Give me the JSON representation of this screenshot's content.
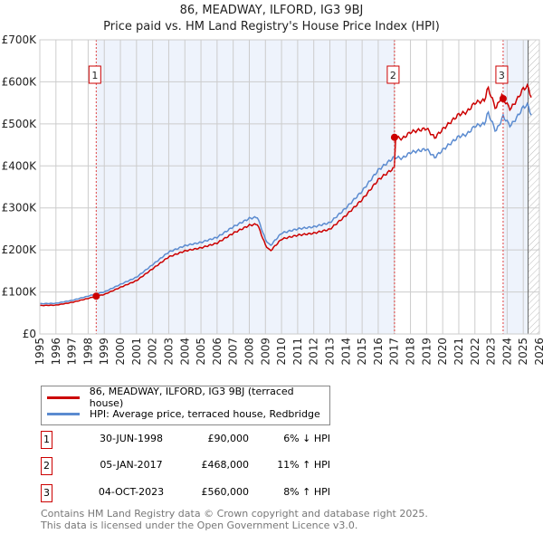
{
  "chart_data": {
    "type": "line",
    "title": "86, MEADWAY, ILFORD, IG3 9BJ",
    "subtitle": "Price paid vs. HM Land Registry's House Price Index (HPI)",
    "xlim": [
      1995,
      2026
    ],
    "ylim": [
      0,
      700000
    ],
    "x_ticks": [
      "1995",
      "1996",
      "1997",
      "1998",
      "1999",
      "2000",
      "2001",
      "2002",
      "2003",
      "2004",
      "2005",
      "2006",
      "2007",
      "2008",
      "2009",
      "2010",
      "2011",
      "2012",
      "2013",
      "2014",
      "2015",
      "2016",
      "2017",
      "2018",
      "2019",
      "2020",
      "2021",
      "2022",
      "2023",
      "2024",
      "2025",
      "2026"
    ],
    "y_ticks": [
      {
        "v": 0,
        "label": "£0"
      },
      {
        "v": 100000,
        "label": "£100K"
      },
      {
        "v": 200000,
        "label": "£200K"
      },
      {
        "v": 300000,
        "label": "£300K"
      },
      {
        "v": 400000,
        "label": "£400K"
      },
      {
        "v": 500000,
        "label": "£500K"
      },
      {
        "v": 600000,
        "label": "£600K"
      },
      {
        "v": 700000,
        "label": "£700K"
      }
    ],
    "grid": true,
    "legend_placement": "below",
    "series": [
      {
        "name": "86, MEADWAY, ILFORD, IG3 9BJ (terraced house)",
        "color": "#cc0000"
      },
      {
        "name": "HPI: Average price, terraced house, Redbridge",
        "color": "#5b8bd0",
        "x": [
          1995,
          1996,
          1997,
          1998,
          1998.5,
          1999,
          2000,
          2001,
          2002,
          2003,
          2004,
          2005,
          2006,
          2007,
          2008,
          2008.5,
          2009,
          2009.3,
          2010,
          2011,
          2012,
          2013,
          2014,
          2015,
          2016,
          2017,
          2017.5,
          2018,
          2019,
          2019.5,
          2020,
          2021,
          2021.5,
          2022,
          2022.6,
          2022.8,
          2023.3,
          2023.6,
          2023.75,
          2024.2,
          2024.6,
          2025,
          2025.3,
          2025.5
        ],
        "y": [
          72000,
          73000,
          80000,
          90000,
          95700,
          100000,
          118000,
          135000,
          165000,
          195000,
          210000,
          218000,
          230000,
          255000,
          275000,
          278000,
          225000,
          210000,
          240000,
          250000,
          255000,
          265000,
          300000,
          340000,
          390000,
          421000,
          418000,
          432000,
          440000,
          420000,
          438000,
          470000,
          475000,
          495000,
          500000,
          528000,
          482000,
          505000,
          518000,
          495000,
          515000,
          540000,
          545000,
          520000
        ]
      }
    ],
    "sales": [
      {
        "n": "1",
        "x": 1998.5,
        "date": "30-JUN-1998",
        "price_value": 90000,
        "price": "£90,000",
        "hpi": "6% ↓ HPI"
      },
      {
        "n": "2",
        "x": 2017.01,
        "date": "05-JAN-2017",
        "price_value": 468000,
        "price": "£468,000",
        "hpi": "11% ↑ HPI"
      },
      {
        "n": "3",
        "x": 2023.75,
        "date": "04-OCT-2023",
        "price_value": 560000,
        "price": "£560,000",
        "hpi": "8% ↑ HPI"
      }
    ],
    "forecast_start": 2025.3
  },
  "footer": {
    "line1": "Contains HM Land Registry data © Crown copyright and database right 2025.",
    "line2": "This data is licensed under the Open Government Licence v3.0."
  }
}
